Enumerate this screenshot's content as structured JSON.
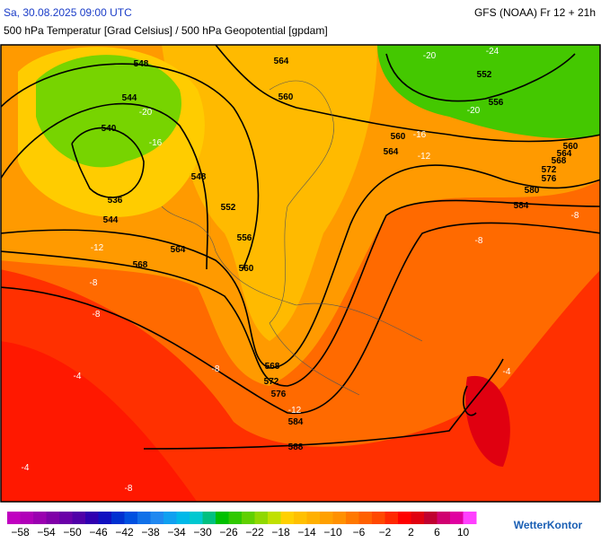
{
  "header": {
    "left": "Sa, 30.08.2025 09:00 UTC",
    "right": "GFS (NOAA) Fr 12 + 21h",
    "subtitle": "500 hPa Temperatur [Grad Celsius] / 500 hPa Geopotential [gpdam]"
  },
  "contour_labels": [
    "548",
    "544",
    "540",
    "536",
    "544",
    "548",
    "552",
    "556",
    "560",
    "564",
    "568",
    "564",
    "560",
    "560",
    "564",
    "552",
    "556",
    "560",
    "564",
    "568",
    "572",
    "576",
    "580",
    "584",
    "568",
    "572",
    "576",
    "584",
    "588"
  ],
  "temperature_labels": [
    "-24",
    "-20",
    "-20",
    "-20",
    "-16",
    "-16",
    "-12",
    "-12",
    "-8",
    "-8",
    "-8",
    "-8",
    "-8",
    "-8",
    "-4",
    "-4",
    "-4",
    "-12"
  ],
  "legend": {
    "labels": [
      "−58",
      "−54",
      "−50",
      "−46",
      "−42",
      "−38",
      "−34",
      "−30",
      "−26",
      "−22",
      "−18",
      "−14",
      "−10",
      "−6",
      "−2",
      "2",
      "6",
      "10"
    ],
    "colors": [
      "#c000c0",
      "#b000b8",
      "#9a00b0",
      "#8000a8",
      "#6a00a8",
      "#5000a8",
      "#3000b0",
      "#1010c0",
      "#0030d0",
      "#0050e0",
      "#1070e8",
      "#2088f0",
      "#10a0f0",
      "#00b8e8",
      "#00c8d0",
      "#00c080",
      "#00c000",
      "#30c800",
      "#60d000",
      "#90d800",
      "#c0e000",
      "#ffd000",
      "#ffc000",
      "#ffb000",
      "#ffa000",
      "#ff9000",
      "#ff7800",
      "#ff6000",
      "#ff4800",
      "#ff2800",
      "#ff0000",
      "#e00010",
      "#c00030",
      "#d00070",
      "#e000a0",
      "#ff40ff"
    ]
  },
  "brand": "WetterKontor"
}
